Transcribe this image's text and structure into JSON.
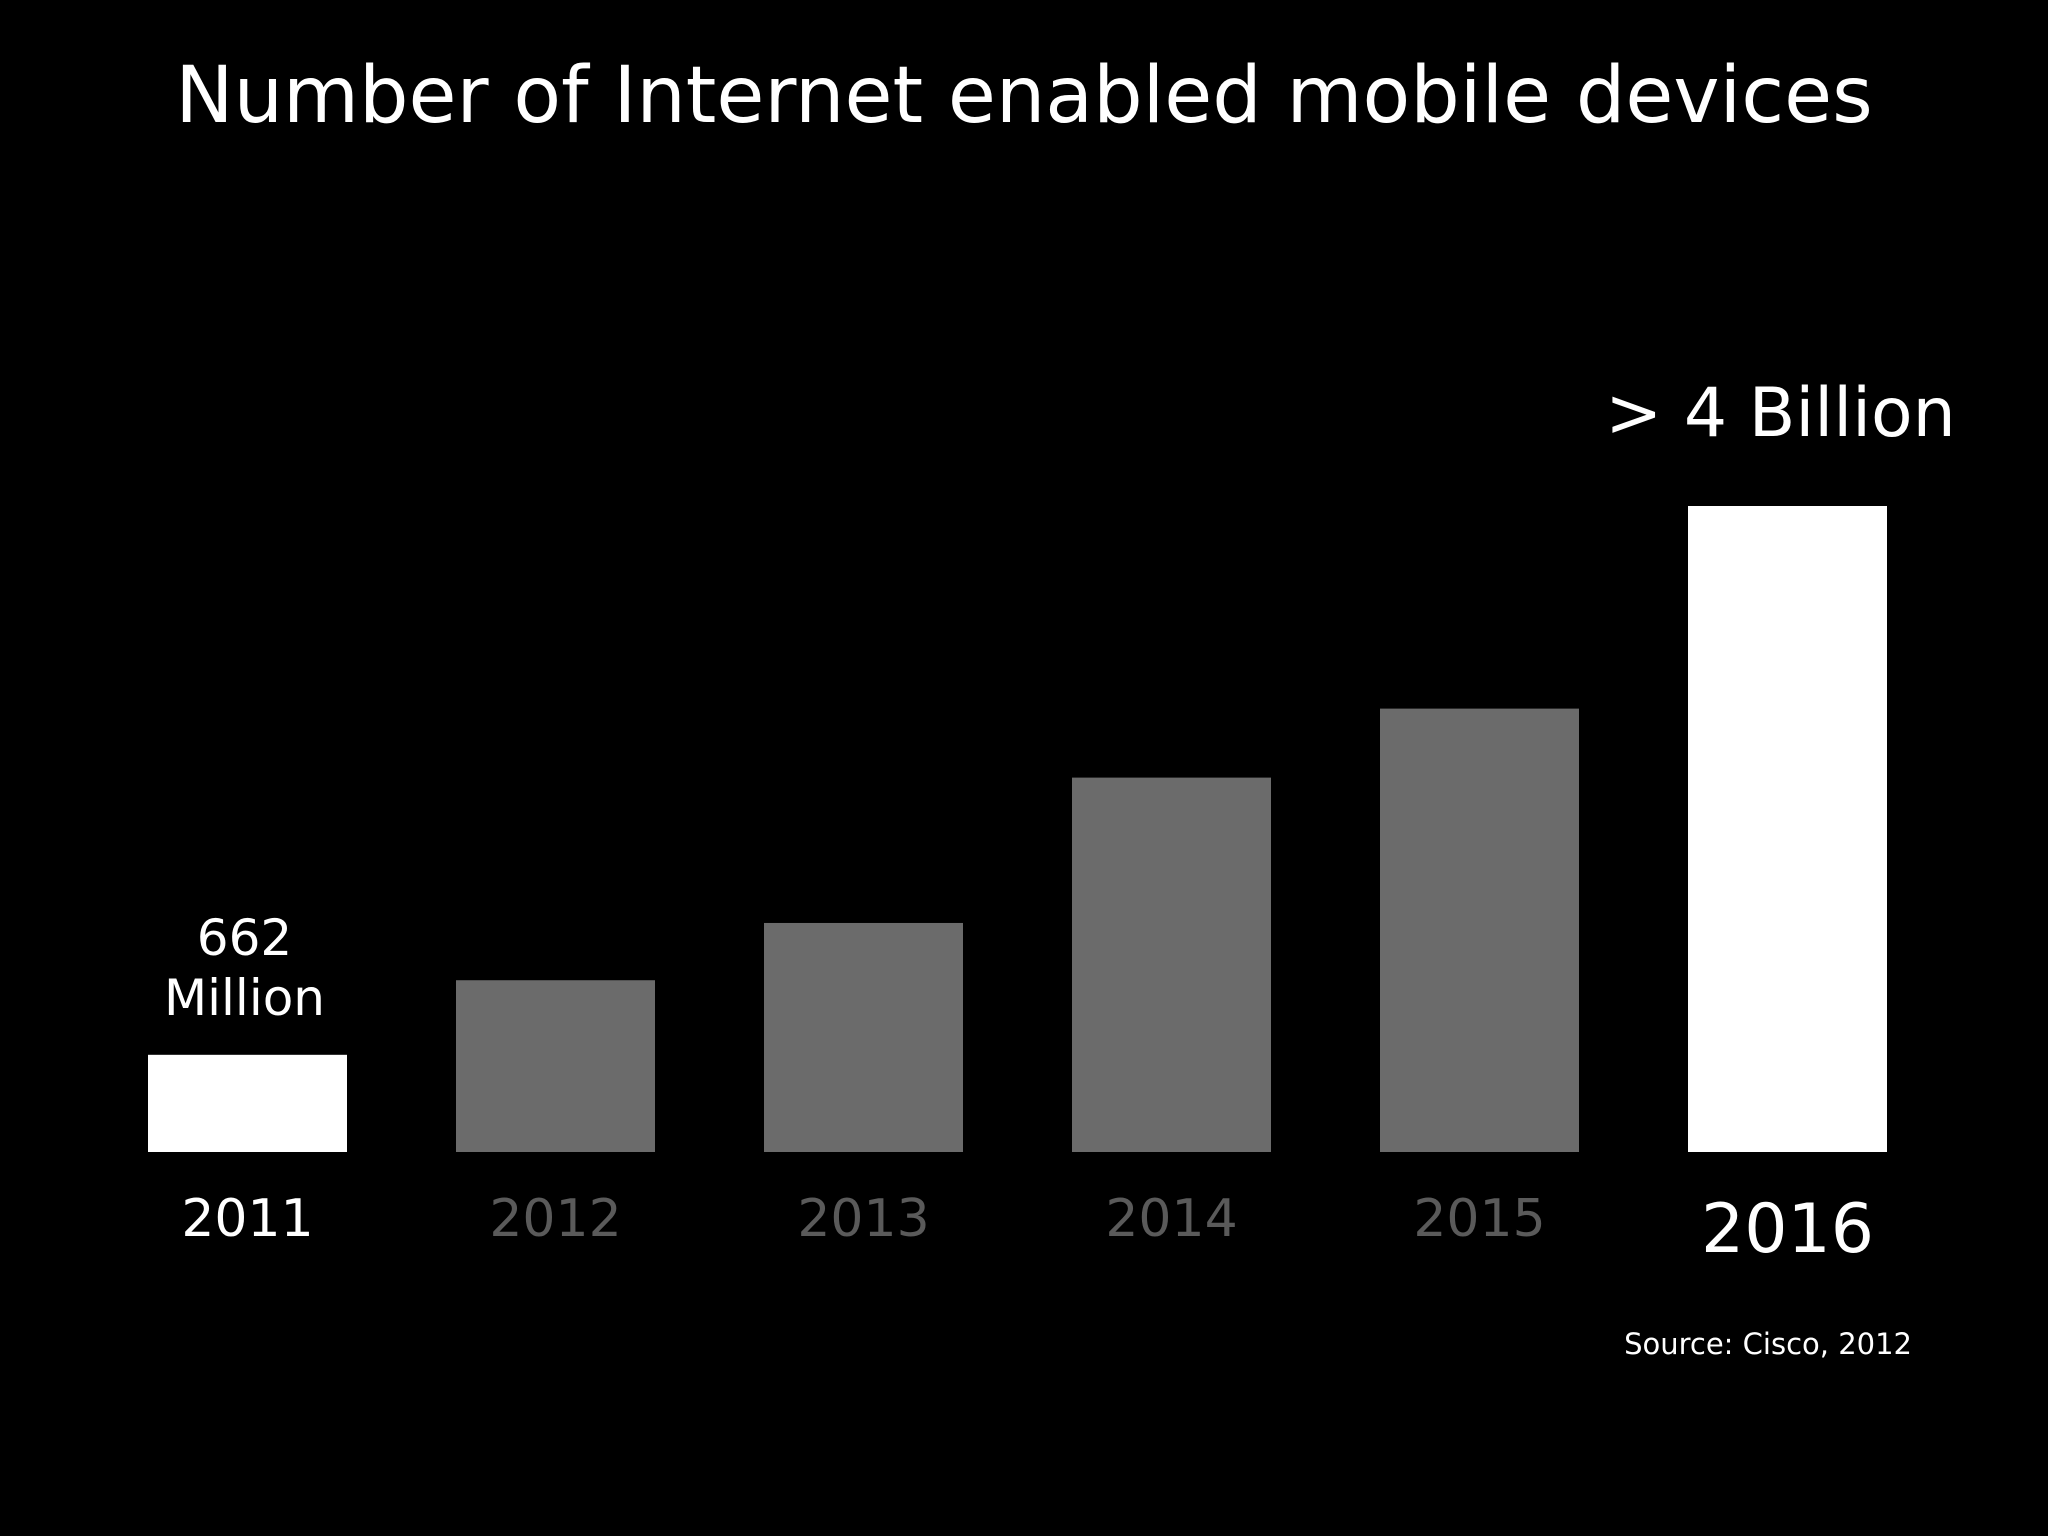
{
  "chart_data": {
    "type": "bar",
    "title": "Number of Internet enabled mobile devices",
    "categories": [
      "2011",
      "2012",
      "2013",
      "2014",
      "2015",
      "2016"
    ],
    "values": [
      0.662,
      1.17,
      1.56,
      2.55,
      3.02,
      4.4
    ],
    "highlighted": [
      "2011",
      "2016"
    ],
    "annotations": [
      {
        "category": "2011",
        "lines": [
          "662",
          "Million"
        ]
      },
      {
        "category": "2016",
        "lines": [
          "> 4 Billion"
        ]
      }
    ],
    "xlabel": "",
    "ylabel": "",
    "ylim": [
      0,
      4.4
    ],
    "grid": false,
    "legend": "none",
    "colors": {
      "background": "#000000",
      "highlight": "#ffffff",
      "muted_bar": "#6b6b6b",
      "muted_label": "#5a5a5a",
      "text": "#ffffff"
    }
  },
  "source": "Source: Cisco, 2012"
}
